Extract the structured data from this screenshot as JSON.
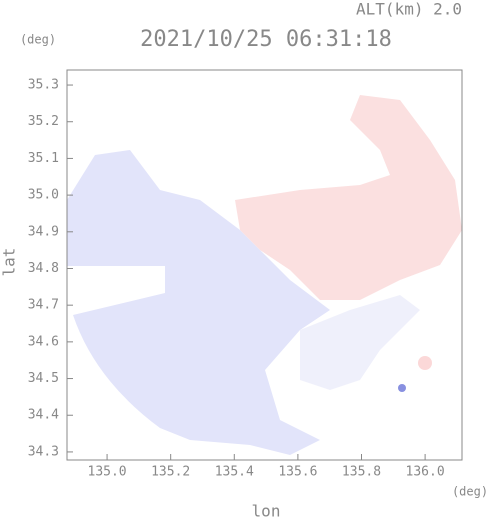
{
  "chart_data": {
    "type": "radar-map",
    "title": "2021/10/25 06:31:18",
    "annotation": "ALT(km) 2.0",
    "x_label": "lon",
    "y_label": "lat",
    "x_unit": "(deg)",
    "y_unit": "(deg)",
    "xlim": [
      134.874,
      136.116
    ],
    "ylim": [
      34.278,
      35.341
    ],
    "xticks": [
      {
        "value": 135,
        "label": "135.0"
      },
      135.2,
      135.4,
      135.6,
      135.8,
      {
        "value": 136,
        "label": "136.0"
      }
    ],
    "yticks": [
      34.3,
      34.4,
      34.5,
      34.6,
      34.7,
      34.8,
      34.9,
      {
        "value": 35,
        "label": "35.0"
      },
      35.1,
      35.2,
      35.3
    ]
  }
}
